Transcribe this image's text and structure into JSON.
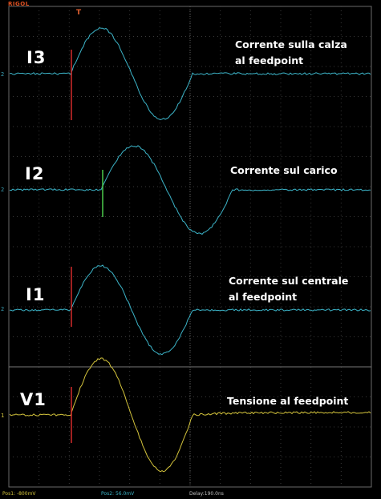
{
  "header": {
    "brand": "RIGOL",
    "trigger_marker": "T"
  },
  "traces": [
    {
      "id": "I3",
      "label": "I3",
      "caption1": "Corrente sulla calza",
      "caption2": "al feedpoint",
      "color": "#3cb4c8",
      "cursor_color": "#d42a2a"
    },
    {
      "id": "I2",
      "label": "I2",
      "caption1": "Corrente sul carico",
      "caption2": "",
      "color": "#3cb4c8",
      "cursor_color": "#4ccc4c"
    },
    {
      "id": "I1",
      "label": "I1",
      "caption1": "Corrente sul centrale",
      "caption2": "al feedpoint",
      "color": "#3cb4c8",
      "cursor_color": "#d42a2a"
    },
    {
      "id": "V1",
      "label": "V1",
      "caption1": "Tensione al feedpoint",
      "caption2": "",
      "color": "#d4c43c",
      "cursor_color": "#d42a2a"
    }
  ],
  "channel_marks": {
    "ch2": "2",
    "ch1": "1"
  },
  "status_bar": {
    "pos1": "Pos1: -800mV",
    "pos2": "Pos2: 56.0mV",
    "delay": "Delay:190.0ns"
  },
  "colors": {
    "grid": "#3a3a3a",
    "grid_dot": "#5a5a5a",
    "frame": "#6a6a6a",
    "cyan": "#3cb4c8",
    "yellow": "#d4c43c"
  }
}
